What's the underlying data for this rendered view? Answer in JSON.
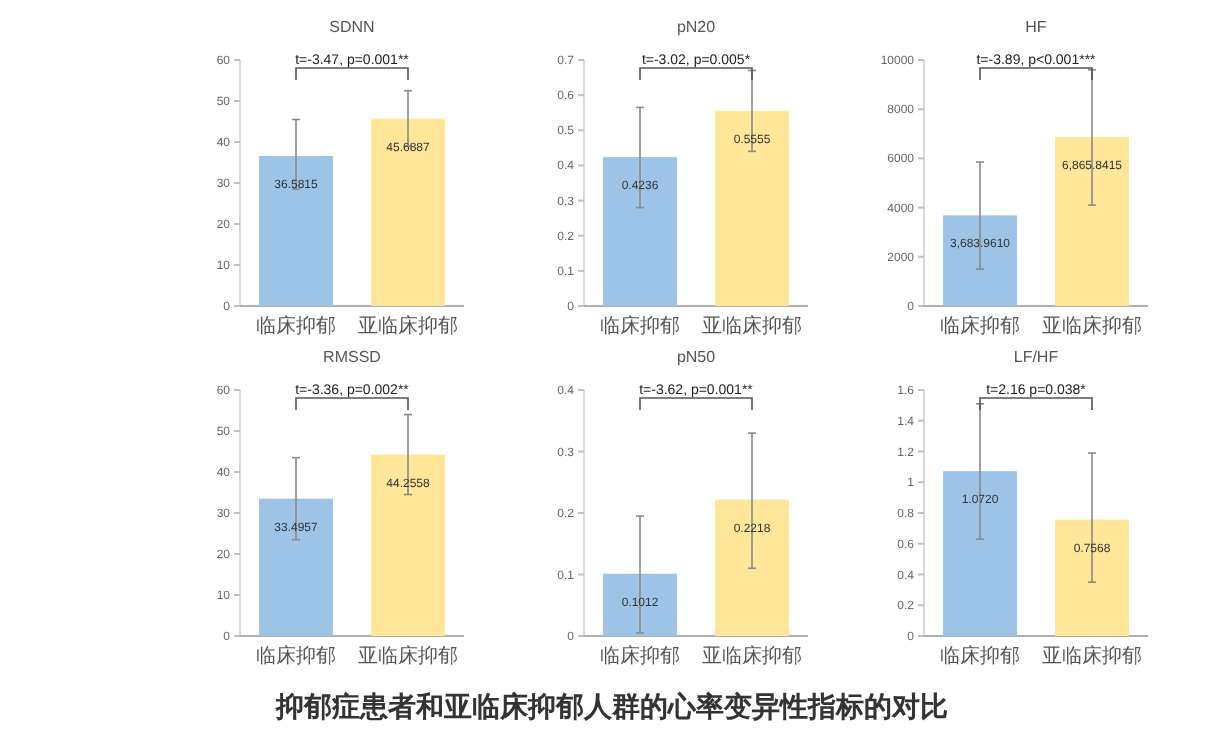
{
  "chart_data": [
    {
      "type": "bar",
      "title": "SDNN",
      "categories": [
        "临床抑郁",
        "亚临床抑郁"
      ],
      "values": [
        36.5815,
        45.6887
      ],
      "colors": [
        "#9dc3e6",
        "#ffe699"
      ],
      "value_labels": [
        "36.5815",
        "45.6887"
      ],
      "errors": [
        [
          28.5,
          45.5
        ],
        [
          39,
          52.5
        ]
      ],
      "ylim": [
        0,
        60
      ],
      "yticks": [
        0,
        10,
        20,
        30,
        40,
        50,
        60
      ],
      "annotations": [
        "t=-3.47, p=0.001**",
        "抑郁症患者和亚临床抑郁人群的心率变异性指标的对比"
      ]
    },
    {
      "type": "bar",
      "title": "pN20",
      "categories": [
        "临床抑郁",
        "亚临床抑郁"
      ],
      "values": [
        0.4236,
        0.5555
      ],
      "colors": [
        "#9dc3e6",
        "#ffe699"
      ],
      "value_labels": [
        "0.4236",
        "0.5555"
      ],
      "errors": [
        [
          0.28,
          0.565
        ],
        [
          0.44,
          0.67
        ]
      ],
      "ylim": [
        0,
        0.7
      ],
      "yticks": [
        0,
        0.1,
        0.2,
        0.3,
        0.4,
        0.5,
        0.6,
        0.7
      ],
      "annotations": [
        "t=-3.02, p=0.005*"
      ]
    },
    {
      "type": "bar",
      "title": "HF",
      "categories": [
        "临床抑郁",
        "亚临床抑郁"
      ],
      "values": [
        3683.961,
        6865.8415
      ],
      "colors": [
        "#9dc3e6",
        "#ffe699"
      ],
      "value_labels": [
        "3,683.9610",
        "6,865.8415"
      ],
      "errors": [
        [
          1500,
          5850
        ],
        [
          4100,
          9600
        ]
      ],
      "ylim": [
        0,
        10000
      ],
      "yticks": [
        0,
        2000,
        4000,
        6000,
        8000,
        10000
      ],
      "annotations": [
        "t=-3.89, p<0.001***"
      ]
    },
    {
      "type": "bar",
      "title": "RMSSD",
      "categories": [
        "临床抑郁",
        "亚临床抑郁"
      ],
      "values": [
        33.4957,
        44.2558
      ],
      "colors": [
        "#9dc3e6",
        "#ffe699"
      ],
      "value_labels": [
        "33.4957",
        "44.2558"
      ],
      "errors": [
        [
          23.5,
          43.5
        ],
        [
          34.5,
          54
        ]
      ],
      "ylim": [
        0,
        60
      ],
      "yticks": [
        0,
        10,
        20,
        30,
        40,
        50,
        60
      ],
      "annotations": [
        "t=-3.36, p=0.002**"
      ]
    },
    {
      "type": "bar",
      "title": "pN50",
      "categories": [
        "临床抑郁",
        "亚临床抑郁"
      ],
      "values": [
        0.1012,
        0.2218
      ],
      "colors": [
        "#9dc3e6",
        "#ffe699"
      ],
      "value_labels": [
        "0.1012",
        "0.2218"
      ],
      "errors": [
        [
          0.005,
          0.195
        ],
        [
          0.11,
          0.33
        ]
      ],
      "ylim": [
        0,
        0.4
      ],
      "yticks": [
        0,
        0.1,
        0.2,
        0.3,
        0.4
      ],
      "annotations": [
        "t=-3.62, p=0.001**"
      ]
    },
    {
      "type": "bar",
      "title": "LF/HF",
      "categories": [
        "临床抑郁",
        "亚临床抑郁"
      ],
      "values": [
        1.072,
        0.7568
      ],
      "colors": [
        "#9dc3e6",
        "#ffe699"
      ],
      "value_labels": [
        "1.0720",
        "0.7568"
      ],
      "errors": [
        [
          0.63,
          1.51
        ],
        [
          0.35,
          1.19
        ]
      ],
      "ylim": [
        0,
        1.6
      ],
      "yticks": [
        0,
        0.2,
        0.4,
        0.6,
        0.8,
        1,
        1.2,
        1.4,
        1.6
      ],
      "annotations": [
        "t=2.16 p=0.038*"
      ]
    }
  ]
}
